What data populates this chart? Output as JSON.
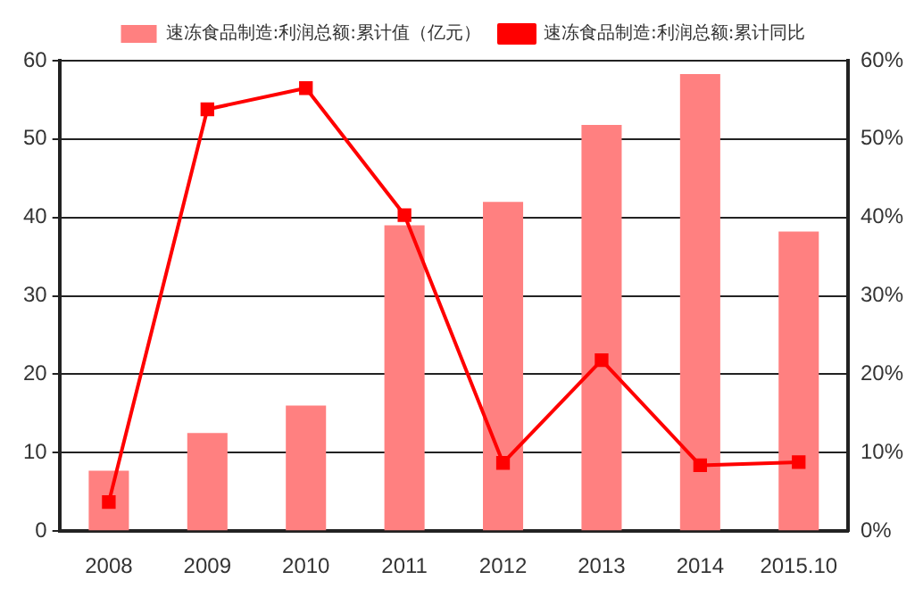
{
  "chart_data": {
    "type": "bar",
    "categories": [
      "2008",
      "2009",
      "2010",
      "2011",
      "2012",
      "2013",
      "2014",
      "2015.10"
    ],
    "series": [
      {
        "name": "速冻食品制造:利润总额:累计值（亿元）",
        "color": "#ff8080",
        "values": [
          7.7,
          12.5,
          16,
          39,
          42,
          51.8,
          58.3,
          38.2
        ]
      },
      {
        "name": "速冻食品制造:利润总额:累计同比",
        "type": "line",
        "axis": "y2",
        "color": "#ff0000",
        "marker": "square",
        "values": [
          3.7,
          53.8,
          56.5,
          40.3,
          8.7,
          21.8,
          8.4,
          8.8
        ]
      }
    ],
    "ylim": [
      0,
      60
    ],
    "yticks": [
      0,
      10,
      20,
      30,
      40,
      50,
      60
    ],
    "y2lim": [
      0,
      60
    ],
    "y2ticks": [
      {
        "value": 0,
        "label": "0%"
      },
      {
        "value": 10,
        "label": "10%"
      },
      {
        "value": 20,
        "label": "20%"
      },
      {
        "value": 30,
        "label": "30%"
      },
      {
        "value": 40,
        "label": "40%"
      },
      {
        "value": 50,
        "label": "50%"
      },
      {
        "value": 60,
        "label": "60%"
      }
    ],
    "grid": "y",
    "legend": "top"
  }
}
